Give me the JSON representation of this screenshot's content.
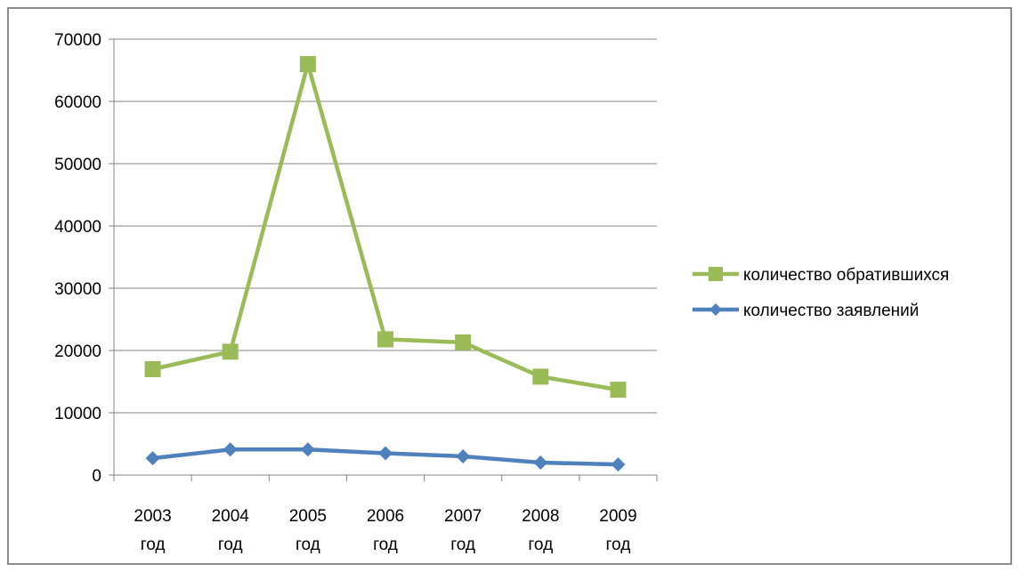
{
  "chart_data": {
    "type": "line",
    "title": "",
    "xlabel": "",
    "ylabel": "",
    "ylim": [
      0,
      70000
    ],
    "y_ticks": [
      "0",
      "10000",
      "20000",
      "30000",
      "40000",
      "50000",
      "60000",
      "70000"
    ],
    "categories": [
      [
        "2003",
        "год"
      ],
      [
        "2004",
        "год"
      ],
      [
        "2005",
        "год"
      ],
      [
        "2006",
        "год"
      ],
      [
        "2007",
        "год"
      ],
      [
        "2008",
        "год"
      ],
      [
        "2009",
        "год"
      ]
    ],
    "grid": true,
    "legend_position": "right",
    "series": [
      {
        "name": "количество обратившихся",
        "color": "#9bbb59",
        "marker": "square",
        "values": [
          17000,
          19800,
          66000,
          21800,
          21300,
          15800,
          13700
        ]
      },
      {
        "name": "количество заявлений",
        "color": "#4f81bd",
        "marker": "diamond",
        "values": [
          2700,
          4100,
          4100,
          3500,
          3000,
          2000,
          1700
        ]
      }
    ]
  }
}
